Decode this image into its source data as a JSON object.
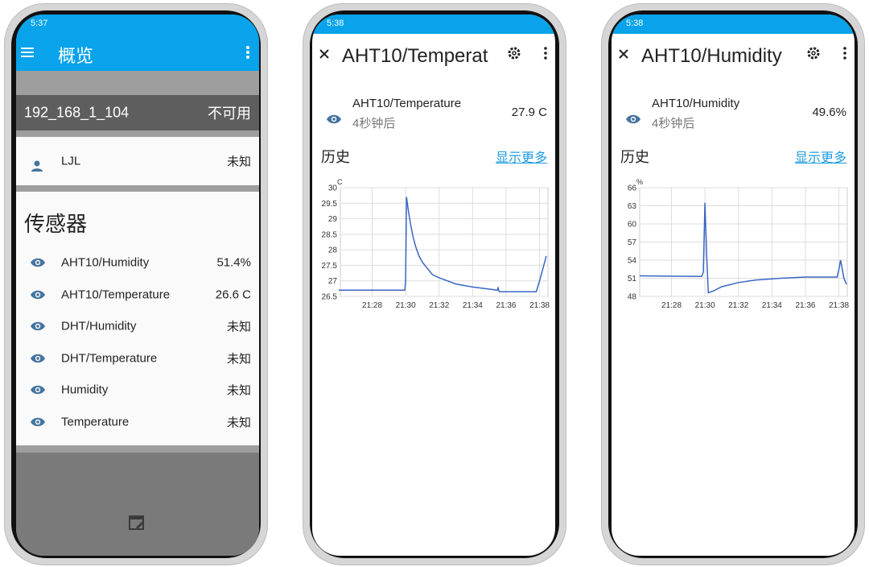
{
  "phones": [
    {
      "status_time": "5:37",
      "app_bar": {
        "title": "概览"
      },
      "device": {
        "name": "192_168_1_104",
        "state": "不可用"
      },
      "user": {
        "name": "LJL",
        "state": "未知"
      },
      "section_title": "传感器",
      "sensors": [
        {
          "name": "AHT10/Humidity",
          "value": "51.4%"
        },
        {
          "name": "AHT10/Temperature",
          "value": "26.6 C"
        },
        {
          "name": "DHT/Humidity",
          "value": "未知"
        },
        {
          "name": "DHT/Temperature",
          "value": "未知"
        },
        {
          "name": "Humidity",
          "value": "未知"
        },
        {
          "name": "Temperature",
          "value": "未知"
        }
      ]
    },
    {
      "status_time": "5:38",
      "title": "AHT10/Temperat",
      "entity": {
        "name": "AHT10/Temperature",
        "updated": "4秒钟后",
        "value": "27.9 C"
      },
      "history_title": "历史",
      "show_more": "显示更多",
      "chart_data": {
        "type": "line",
        "y_unit": "C",
        "x": [
          1286,
          1289.95,
          1290.0,
          1290.05,
          1290.15,
          1290.3,
          1290.45,
          1290.6,
          1290.8,
          1291.0,
          1291.3,
          1291.6,
          1292.0,
          1292.5,
          1293.0,
          1294.0,
          1295.5,
          1295.52,
          1295.55,
          1295.6,
          1297.8,
          1298.0,
          1298.2,
          1298.4
        ],
        "series": [
          {
            "color": "#3a66c4",
            "values": [
              26.7,
              26.7,
              27.0,
              29.7,
              29.3,
              28.8,
              28.4,
              28.1,
              27.8,
              27.6,
              27.4,
              27.2,
              27.1,
              27.0,
              26.9,
              26.8,
              26.7,
              26.8,
              26.7,
              26.65,
              26.65,
              27.0,
              27.4,
              27.8
            ]
          }
        ],
        "xlim": [
          1286.1,
          1298.5
        ],
        "ylim": [
          26.5,
          30
        ],
        "xticks": [
          {
            "value": 1288,
            "label": "21:28"
          },
          {
            "value": 1290,
            "label": "21:30"
          },
          {
            "value": 1292,
            "label": "21:32"
          },
          {
            "value": 1294,
            "label": "21:34"
          },
          {
            "value": 1296,
            "label": "21:36"
          },
          {
            "value": 1298,
            "label": "21:38"
          }
        ],
        "yticks": [
          26.5,
          27,
          27.5,
          28,
          28.5,
          29,
          29.5,
          30
        ],
        "grid": true
      }
    },
    {
      "status_time": "5:38",
      "title": "AHT10/Humidity",
      "entity": {
        "name": "AHT10/Humidity",
        "updated": "4秒钟后",
        "value": "49.6%"
      },
      "history_title": "历史",
      "show_more": "显示更多",
      "chart_data": {
        "type": "line",
        "y_unit": "%",
        "x": [
          1286.1,
          1289.8,
          1289.9,
          1290.0,
          1290.1,
          1290.2,
          1290.5,
          1291.0,
          1292.0,
          1293.0,
          1294.5,
          1296.0,
          1297.9,
          1298.0,
          1298.1,
          1298.3,
          1298.45
        ],
        "series": [
          {
            "color": "#3a66c4",
            "values": [
              51.4,
              51.3,
              52.0,
              63.5,
              55.0,
              48.6,
              48.9,
              49.6,
              50.3,
              50.7,
              51.0,
              51.2,
              51.2,
              52.5,
              54.0,
              51.0,
              50.0
            ]
          }
        ],
        "xlim": [
          1286.1,
          1298.5
        ],
        "ylim": [
          48,
          66
        ],
        "xticks": [
          {
            "value": 1288,
            "label": "21:28"
          },
          {
            "value": 1290,
            "label": "21:30"
          },
          {
            "value": 1292,
            "label": "21:32"
          },
          {
            "value": 1294,
            "label": "21:34"
          },
          {
            "value": 1296,
            "label": "21:36"
          },
          {
            "value": 1298,
            "label": "21:38"
          }
        ],
        "yticks": [
          48,
          51,
          54,
          57,
          60,
          63,
          66
        ],
        "grid": true
      }
    }
  ]
}
